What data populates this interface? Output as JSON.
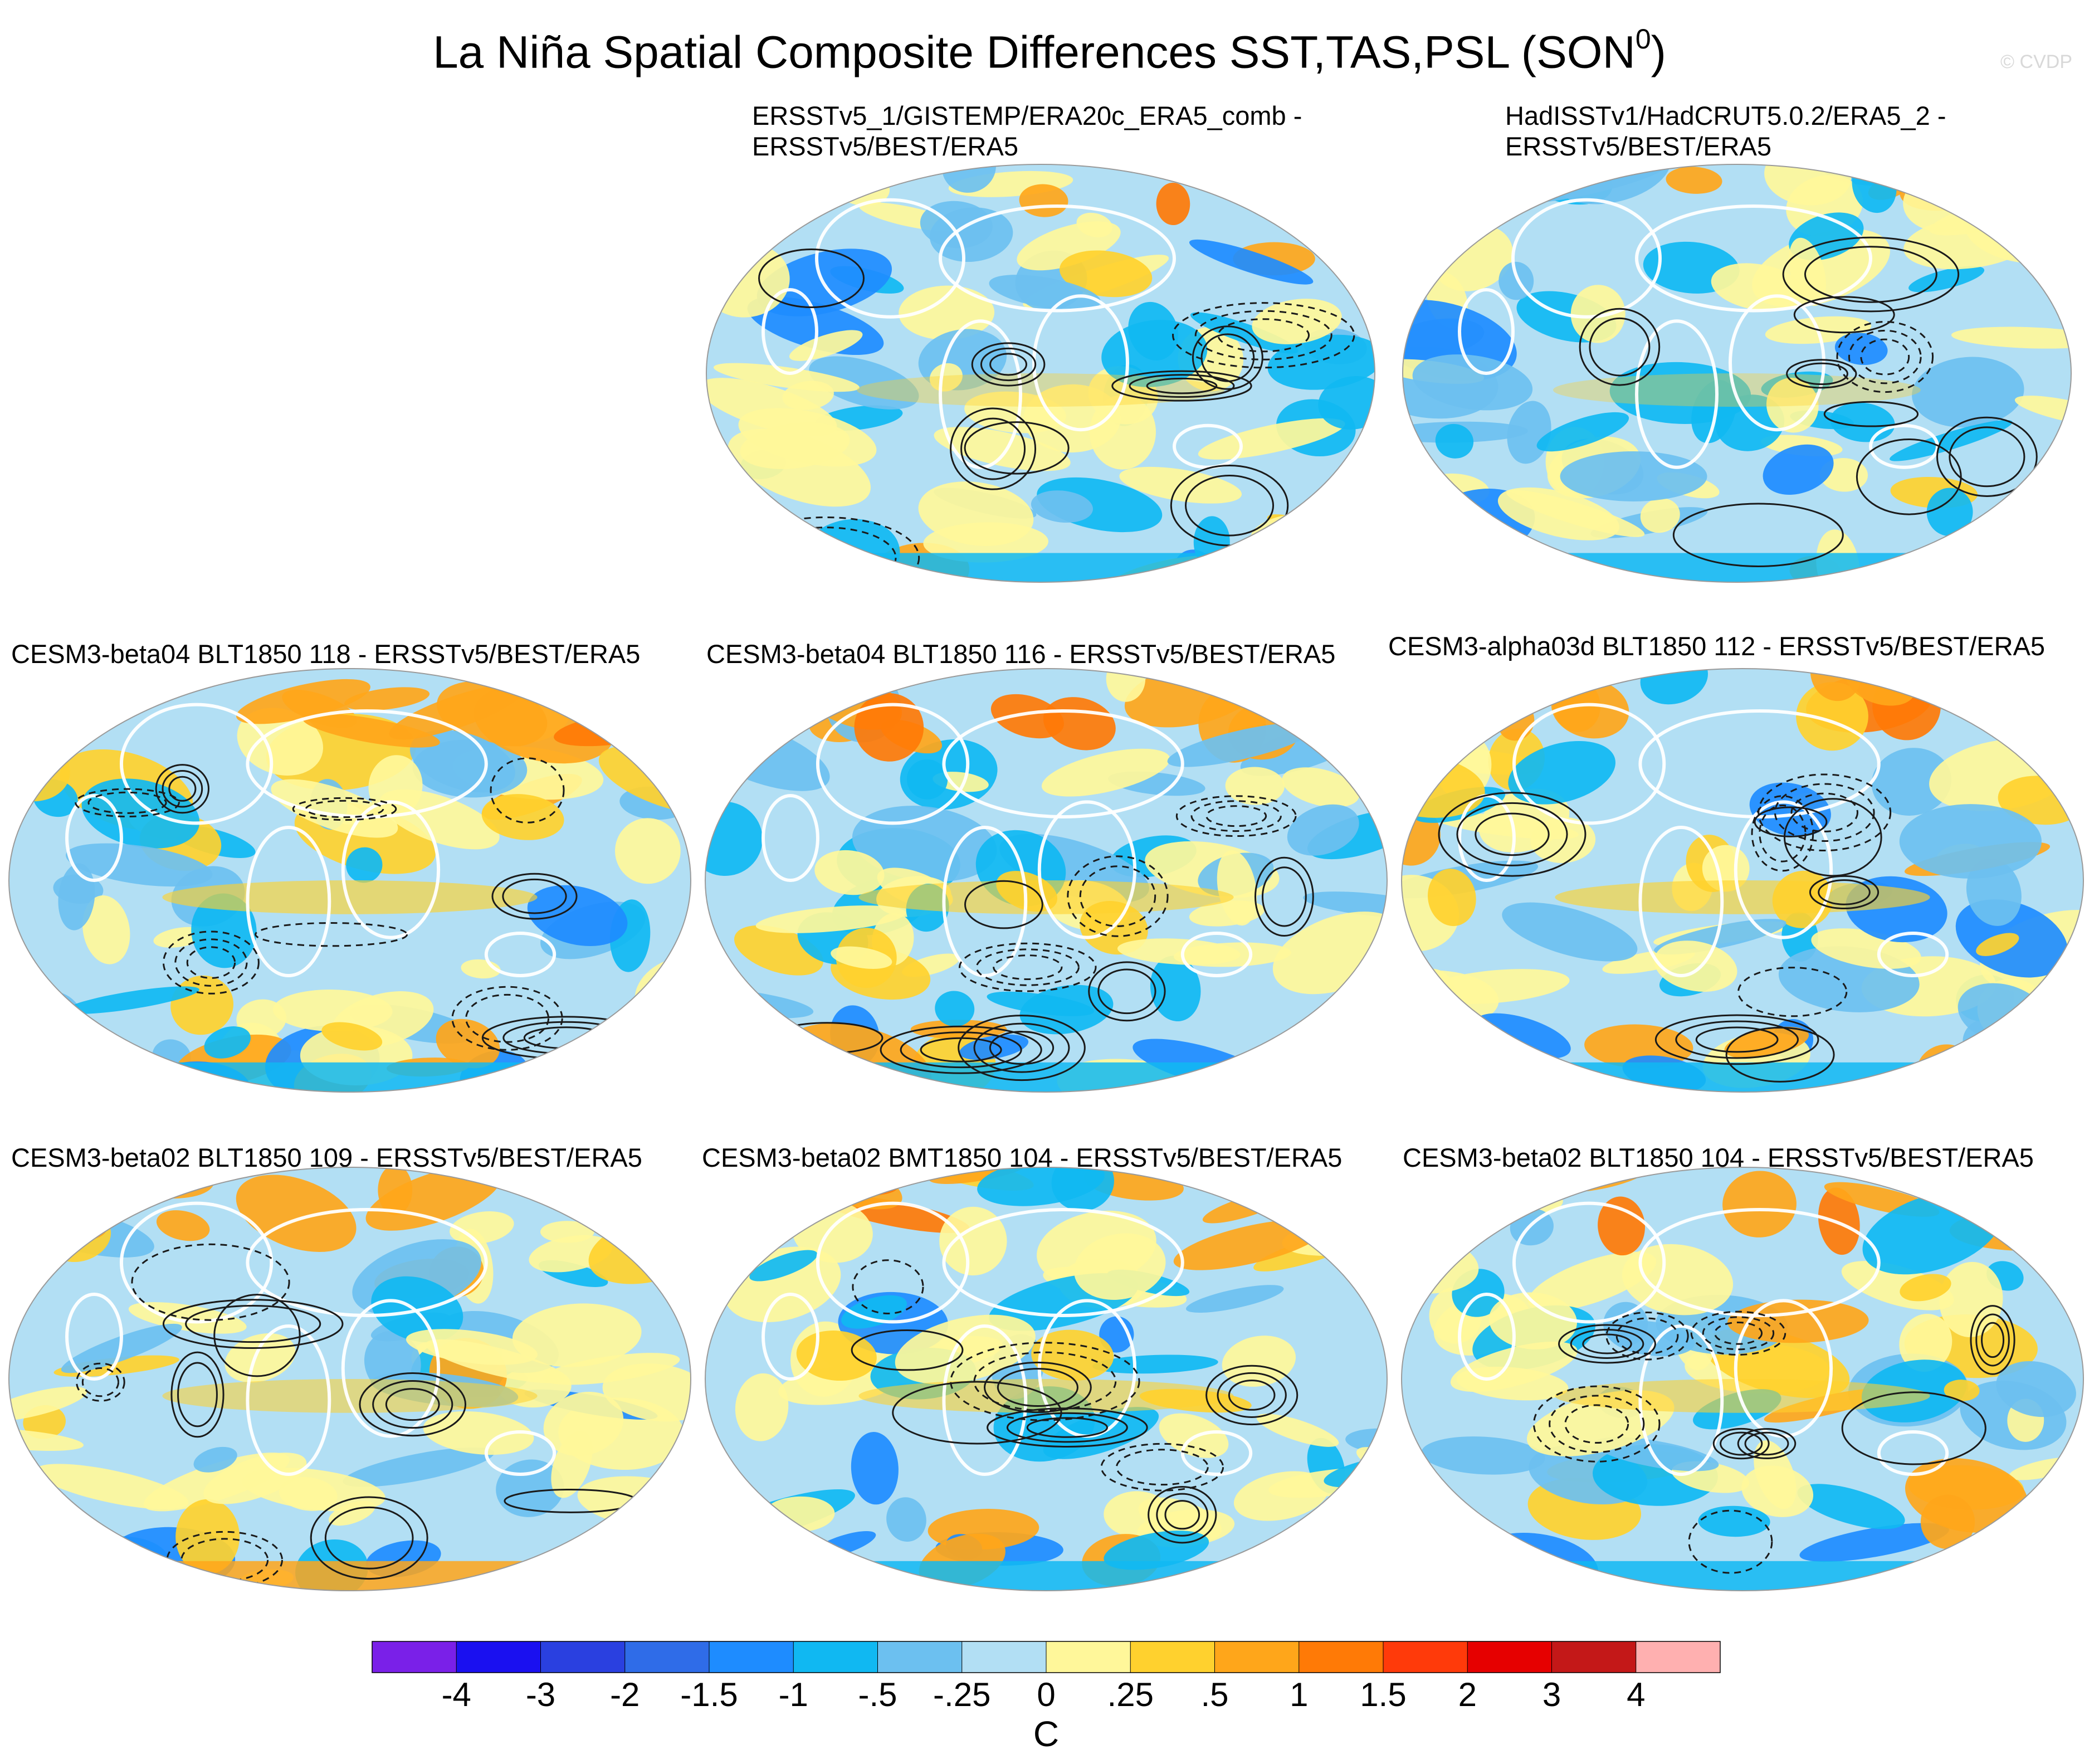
{
  "title_main": "La Niña Spatial Composite Differences SST,TAS,PSL (SON",
  "title_sup": "0",
  "title_close": ")",
  "watermark": "© CVDP",
  "colorbar_unit": "C",
  "chart_data": {
    "type": "map-panels",
    "variables": [
      "SST",
      "TAS",
      "PSL"
    ],
    "season": "SON0",
    "colorbar": {
      "tick_labels": [
        "-4",
        "-3",
        "-2",
        "-1.5",
        "-1",
        "-.5",
        "-.25",
        "0",
        ".25",
        ".5",
        "1",
        "1.5",
        "2",
        "3",
        "4"
      ],
      "colors": [
        "#7a20e8",
        "#1a10f0",
        "#2a40e0",
        "#2f6ce8",
        "#1e8cff",
        "#10b8f2",
        "#6cc0f0",
        "#b2dff4",
        "#fff79a",
        "#ffd12e",
        "#ffa61a",
        "#ff7a06",
        "#ff3a0a",
        "#e60000",
        "#c41818",
        "#ffb0b0"
      ],
      "unit": "C"
    },
    "panels": [
      {
        "id": "p1",
        "title": "ERSSTv5_1/GISTEMP/ERA20c_ERA5_comb -\nERSSTv5/BEST/ERA5",
        "intensity": 0.35,
        "seed": 11
      },
      {
        "id": "p2",
        "title": "HadISSTv1/HadCRUT5.0.2/ERA5_2 -\nERSSTv5/BEST/ERA5",
        "intensity": 0.3,
        "seed": 23
      },
      {
        "id": "p3",
        "title": "CESM3-beta04 BLT1850 118 - ERSSTv5/BEST/ERA5",
        "intensity": 0.8,
        "seed": 37
      },
      {
        "id": "p4",
        "title": "CESM3-beta04 BLT1850 116 - ERSSTv5/BEST/ERA5",
        "intensity": 0.75,
        "seed": 41
      },
      {
        "id": "p5",
        "title": "CESM3-alpha03d BLT1850 112 - ERSSTv5/BEST/ERA5",
        "intensity": 0.8,
        "seed": 53
      },
      {
        "id": "p6",
        "title": "CESM3-beta02 BLT1850 109 - ERSSTv5/BEST/ERA5",
        "intensity": 0.65,
        "seed": 67
      },
      {
        "id": "p7",
        "title": "CESM3-beta02 BMT1850 104 - ERSSTv5/BEST/ERA5",
        "intensity": 0.7,
        "seed": 79
      },
      {
        "id": "p8",
        "title": "CESM3-beta02 BLT1850 104 - ERSSTv5/BEST/ERA5",
        "intensity": 0.7,
        "seed": 83
      }
    ]
  }
}
